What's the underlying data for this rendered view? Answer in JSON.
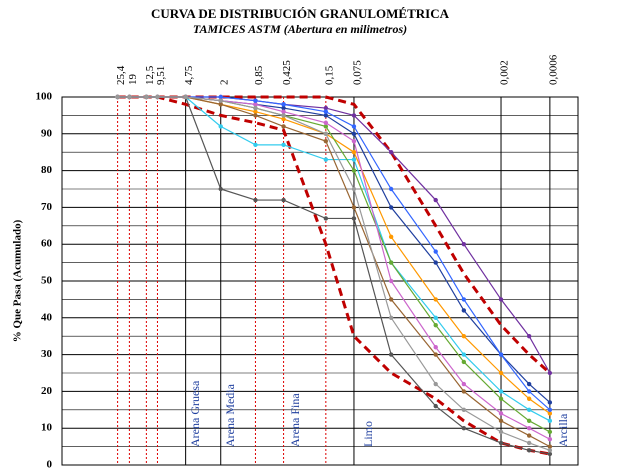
{
  "chart_data": {
    "type": "line",
    "title": "CURVA DE DISTRIBUCIÓN GRANULOMÉTRICA",
    "subtitle": "TAMICES ASTM (Abertura en milimetros)",
    "y_label": "% Que Pasa (Acumulado)",
    "log_x": true,
    "x_reversed": true,
    "grid": true,
    "xlim": [
      100,
      0.0003
    ],
    "xticks": [
      {
        "value": 25.4,
        "label": "25,4"
      },
      19,
      {
        "value": 12.5,
        "label": "12,5"
      },
      {
        "value": 9.51,
        "label": "9,51"
      },
      {
        "value": 4.75,
        "label": "4,75"
      },
      2,
      {
        "value": 0.85,
        "label": "0,85"
      },
      {
        "value": 0.425,
        "label": "0,425"
      },
      {
        "value": 0.15,
        "label": "0,15"
      },
      {
        "value": 0.075,
        "label": "0,075"
      },
      {
        "value": 0.002,
        "label": "0,002"
      },
      {
        "value": 0.0006,
        "label": "0,0006"
      }
    ],
    "ylim": [
      0,
      100
    ],
    "yticks": [
      0,
      10,
      20,
      30,
      40,
      50,
      60,
      70,
      80,
      90,
      100
    ],
    "zones": [
      "Arena Gruesa",
      "Arena Media",
      "Arena Fina",
      "Limo",
      "Arcilla"
    ],
    "x": [
      25.4,
      19,
      12.5,
      9.51,
      4.75,
      2,
      0.85,
      0.425,
      0.15,
      0.075,
      0.03,
      0.01,
      0.005,
      0.002,
      0.001,
      0.0006
    ],
    "series": [
      {
        "color": "#c00000",
        "dashed": true,
        "values": [
          100,
          100,
          100,
          100,
          100,
          100,
          100,
          100,
          100,
          98,
          85,
          65,
          52,
          38,
          30,
          25
        ]
      },
      {
        "color": "#c00000",
        "dashed": true,
        "values": [
          100,
          100,
          100,
          100,
          98,
          95,
          93,
          91,
          60,
          35,
          25,
          18,
          12,
          6,
          4,
          3
        ]
      },
      {
        "color": "#555555",
        "dashed": false,
        "values": [
          100,
          100,
          100,
          100,
          100,
          75,
          72,
          72,
          67,
          67,
          30,
          16,
          10,
          6,
          4,
          3
        ]
      },
      {
        "color": "#33ccee",
        "dashed": false,
        "values": [
          100,
          100,
          100,
          100,
          100,
          92,
          87,
          87,
          83,
          83,
          55,
          40,
          30,
          20,
          15,
          12
        ]
      },
      {
        "color": "#7030a0",
        "dashed": false,
        "values": [
          100,
          100,
          100,
          100,
          100,
          100,
          99,
          98,
          97,
          95,
          85,
          72,
          60,
          45,
          35,
          25
        ]
      },
      {
        "color": "#1f3f9f",
        "dashed": false,
        "values": [
          100,
          100,
          100,
          100,
          100,
          99,
          98,
          97,
          95,
          90,
          70,
          55,
          42,
          30,
          22,
          17
        ]
      },
      {
        "color": "#ff9900",
        "dashed": false,
        "values": [
          100,
          100,
          100,
          100,
          100,
          98,
          96,
          94,
          90,
          85,
          62,
          45,
          35,
          25,
          18,
          14
        ]
      },
      {
        "color": "#66aa33",
        "dashed": false,
        "values": [
          100,
          100,
          100,
          100,
          100,
          99,
          97,
          95,
          92,
          80,
          55,
          38,
          28,
          18,
          12,
          9
        ]
      },
      {
        "color": "#cc66cc",
        "dashed": false,
        "values": [
          100,
          100,
          100,
          100,
          100,
          99,
          98,
          96,
          93,
          88,
          50,
          32,
          22,
          14,
          10,
          7
        ]
      },
      {
        "color": "#3366ff",
        "dashed": false,
        "values": [
          100,
          100,
          100,
          100,
          100,
          100,
          99,
          98,
          96,
          92,
          75,
          58,
          45,
          30,
          20,
          15
        ]
      },
      {
        "color": "#996633",
        "dashed": false,
        "values": [
          100,
          100,
          100,
          100,
          100,
          98,
          95,
          92,
          88,
          70,
          45,
          30,
          20,
          12,
          8,
          5
        ]
      },
      {
        "color": "#999999",
        "dashed": false,
        "values": [
          100,
          100,
          100,
          100,
          100,
          99,
          97,
          95,
          90,
          75,
          40,
          22,
          15,
          9,
          6,
          4
        ]
      }
    ]
  }
}
